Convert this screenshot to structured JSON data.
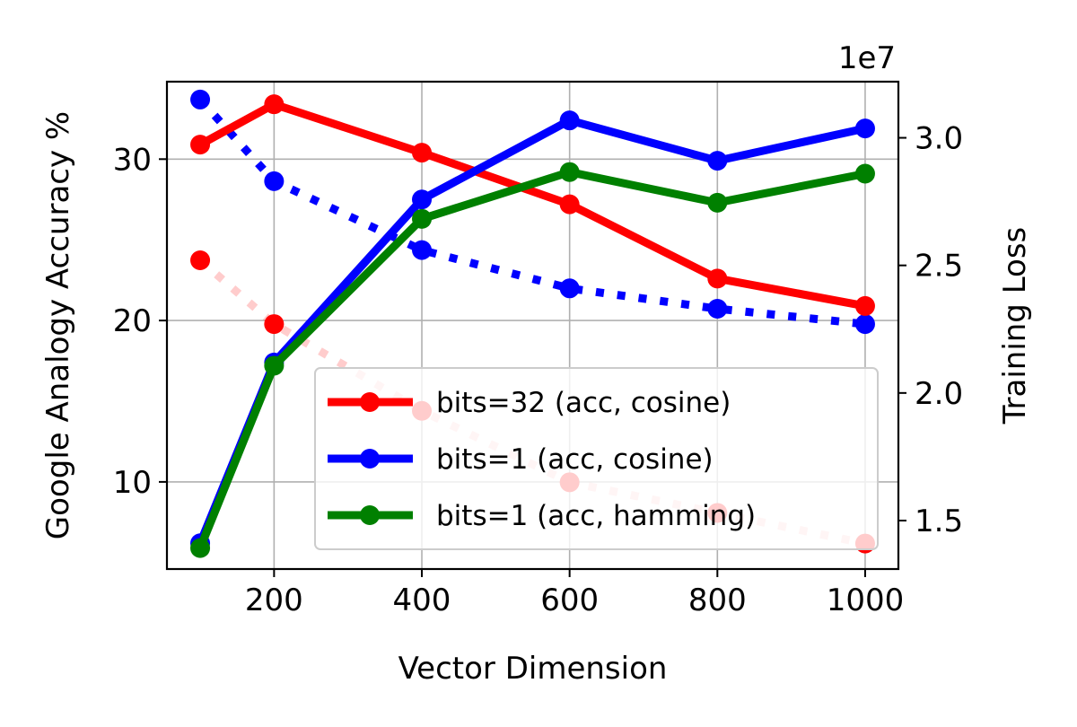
{
  "chart_data": {
    "type": "line",
    "xlabel": "Vector Dimension",
    "ylabel": "Google Analogy Accuracy %",
    "y2label": "Training Loss",
    "y2_offset_label": "1e7",
    "x": [
      100,
      200,
      400,
      600,
      800,
      1000
    ],
    "xlim": [
      55,
      1045
    ],
    "ylim": [
      4.6,
      34.8
    ],
    "y2lim": [
      1.31,
      3.22
    ],
    "y2_units": "×1e7",
    "xticks": [
      "200",
      "400",
      "600",
      "800",
      "1000"
    ],
    "yticks": [
      "10",
      "20",
      "30"
    ],
    "y2ticks": [
      "1.5",
      "2.0",
      "2.5",
      "3.0"
    ],
    "grid": true,
    "legend_position": "lower right",
    "series": [
      {
        "name": "bits=32 (acc, cosine)",
        "axis": "left",
        "color": "#ff0000",
        "style": "solid",
        "values": [
          30.9,
          33.4,
          30.4,
          27.2,
          22.6,
          20.9
        ]
      },
      {
        "name": "bits=1 (acc, cosine)",
        "axis": "left",
        "color": "#0000ff",
        "style": "solid",
        "values": [
          6.2,
          17.4,
          27.5,
          32.4,
          29.9,
          31.9
        ]
      },
      {
        "name": "bits=1 (acc, hamming)",
        "axis": "left",
        "color": "#008000",
        "style": "solid",
        "values": [
          5.9,
          17.2,
          26.3,
          29.2,
          27.3,
          29.1
        ]
      },
      {
        "axis": "right",
        "color": "#0000ff",
        "style": "dotted",
        "values": [
          3.15,
          2.83,
          2.56,
          2.41,
          2.33,
          2.27
        ]
      },
      {
        "axis": "right",
        "color": "#ff0000",
        "style": "dotted",
        "values": [
          2.52,
          2.27,
          1.93,
          1.65,
          1.53,
          1.41
        ]
      }
    ]
  }
}
